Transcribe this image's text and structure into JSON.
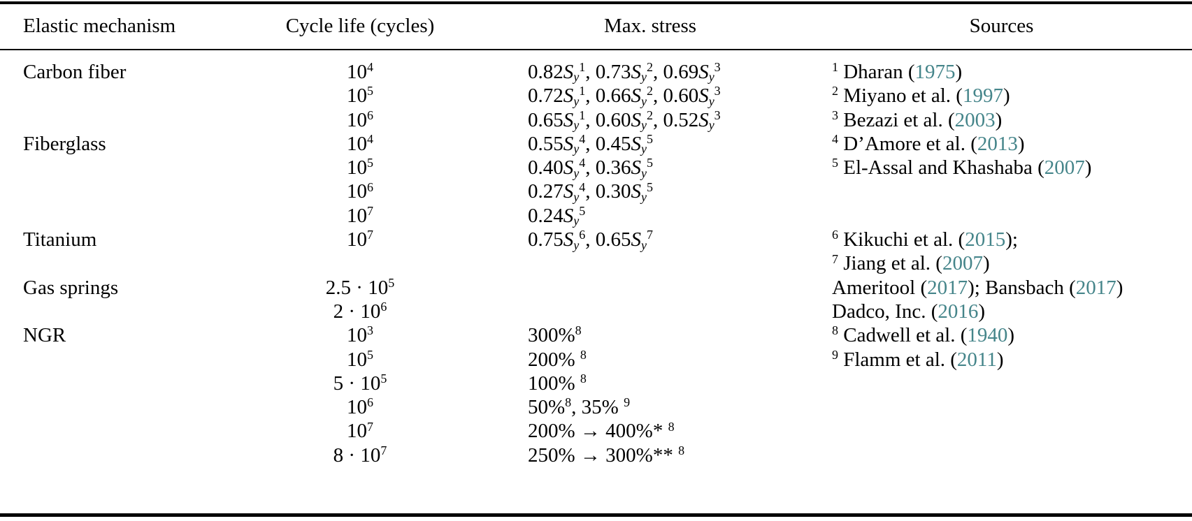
{
  "colors": {
    "text": "#000000",
    "rule": "#000000",
    "background": "#ffffff",
    "citation_year": "#45858a"
  },
  "table": {
    "headers": [
      {
        "label": "Elastic mechanism"
      },
      {
        "label": "Cycle life (cycles)"
      },
      {
        "label": "Max. stress"
      },
      {
        "label": "Sources"
      }
    ],
    "rows": [
      {
        "mechanism": "Carbon fiber",
        "cycle": "10^{4}",
        "stress": "0.82*{S_{y}}^{1}, 0.73*{S_{y}}^{2}, 0.69*{S_{y}}^{3}",
        "source": "^{1} Dharan (@{1975})"
      },
      {
        "mechanism": "",
        "cycle": "10^{5}",
        "stress": "0.72*{S_{y}}^{1}, 0.66*{S_{y}}^{2}, 0.60*{S_{y}}^{3}",
        "source": "^{2} Miyano et al. (@{1997})"
      },
      {
        "mechanism": "",
        "cycle": "10^{6}",
        "stress": "0.65*{S_{y}}^{1}, 0.60*{S_{y}}^{2}, 0.52*{S_{y}}^{3}",
        "source": "^{3} Bezazi et al. (@{2003})"
      },
      {
        "mechanism": "Fiberglass",
        "cycle": "10^{4}",
        "stress": "0.55*{S_{y}}^{4}, 0.45*{S_{y}}^{5}",
        "source": "^{4} D’Amore et al. (@{2013})"
      },
      {
        "mechanism": "",
        "cycle": "10^{5}",
        "stress": "0.40*{S_{y}}^{4}, 0.36*{S_{y}}^{5}",
        "source": "^{5} El-Assal and Khashaba (@{2007})"
      },
      {
        "mechanism": "",
        "cycle": "10^{6}",
        "stress": "0.27*{S_{y}}^{4}, 0.30*{S_{y}}^{5}",
        "source": ""
      },
      {
        "mechanism": "",
        "cycle": "10^{7}",
        "stress": "0.24*{S_{y}}^{5}",
        "source": ""
      },
      {
        "mechanism": "Titanium",
        "cycle": "10^{7}",
        "stress": "0.75*{S_{y}}^{6}, 0.65*{S_{y}}^{7}",
        "source": "^{6} Kikuchi et al. (@{2015});"
      },
      {
        "mechanism": "",
        "cycle": "",
        "stress": "",
        "source": "^{7} Jiang et al. (@{2007})"
      },
      {
        "mechanism": "Gas springs",
        "cycle": "2.5 · 10^{5}",
        "stress": "",
        "source": "Ameritool (@{2017}); Bansbach (@{2017})"
      },
      {
        "mechanism": "",
        "cycle": "2 · 10^{6}",
        "stress": "",
        "source": "Dadco, Inc. (@{2016})"
      },
      {
        "mechanism": "NGR",
        "cycle": "10^{3}",
        "stress": "300%^{8}",
        "source": "^{8} Cadwell et al. (@{1940})"
      },
      {
        "mechanism": "",
        "cycle": "10^{5}",
        "stress": "200% ^{8}",
        "source": "^{9} Flamm et al. (@{2011})"
      },
      {
        "mechanism": "",
        "cycle": "5 · 10^{5}",
        "stress": "100% ^{8}",
        "source": ""
      },
      {
        "mechanism": "",
        "cycle": "10^{6}",
        "stress": "50%^{8}, 35% ^{9}",
        "source": ""
      },
      {
        "mechanism": "",
        "cycle": "10^{7}",
        "stress": "200% → 400%* ^{8}",
        "source": ""
      },
      {
        "mechanism": "",
        "cycle": "8 · 10^{7}",
        "stress": "250% → 300%** ^{8}",
        "source": ""
      }
    ]
  }
}
